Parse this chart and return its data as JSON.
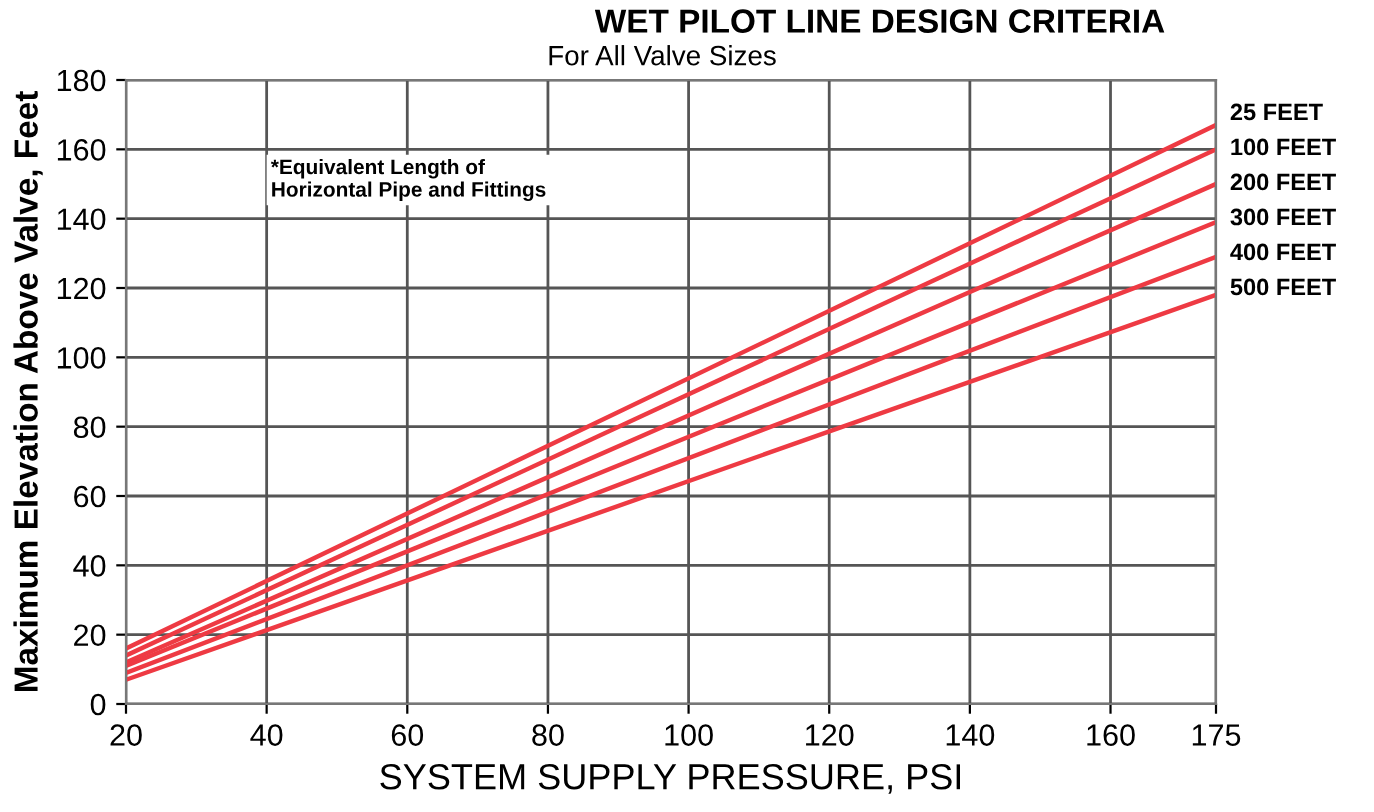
{
  "chart_data": {
    "type": "line",
    "title": "WET PILOT LINE DESIGN CRITERIA",
    "subtitle": "For All Valve Sizes",
    "xlabel": "SYSTEM SUPPLY PRESSURE, PSI",
    "ylabel": "Maximum Elevation Above Valve, Feet",
    "annotations": [
      "*Equivalent Length of\nHorizontal Pipe and Fittings"
    ],
    "x": [
      20,
      175
    ],
    "series": [
      {
        "name": "25 FEET",
        "color": "#ee3a43",
        "values": [
          16,
          167
        ]
      },
      {
        "name": "100 FEET",
        "color": "#ee3a43",
        "values": [
          14,
          160
        ]
      },
      {
        "name": "200 FEET",
        "color": "#ee3a43",
        "values": [
          12,
          150
        ]
      },
      {
        "name": "300 FEET",
        "color": "#ee3a43",
        "values": [
          11,
          139
        ]
      },
      {
        "name": "400 FEET",
        "color": "#ee3a43",
        "values": [
          9,
          129
        ]
      },
      {
        "name": "500 FEET",
        "color": "#ee3a43",
        "values": [
          7,
          118
        ]
      }
    ],
    "xlim": [
      20,
      175
    ],
    "xticks": [
      20,
      40,
      60,
      80,
      100,
      120,
      140,
      160,
      175
    ],
    "ylim": [
      0,
      180
    ],
    "yticks": [
      0,
      20,
      40,
      60,
      80,
      100,
      120,
      140,
      160,
      180
    ],
    "grid": true,
    "legend": false,
    "marker": "none",
    "line_style": "solid"
  }
}
